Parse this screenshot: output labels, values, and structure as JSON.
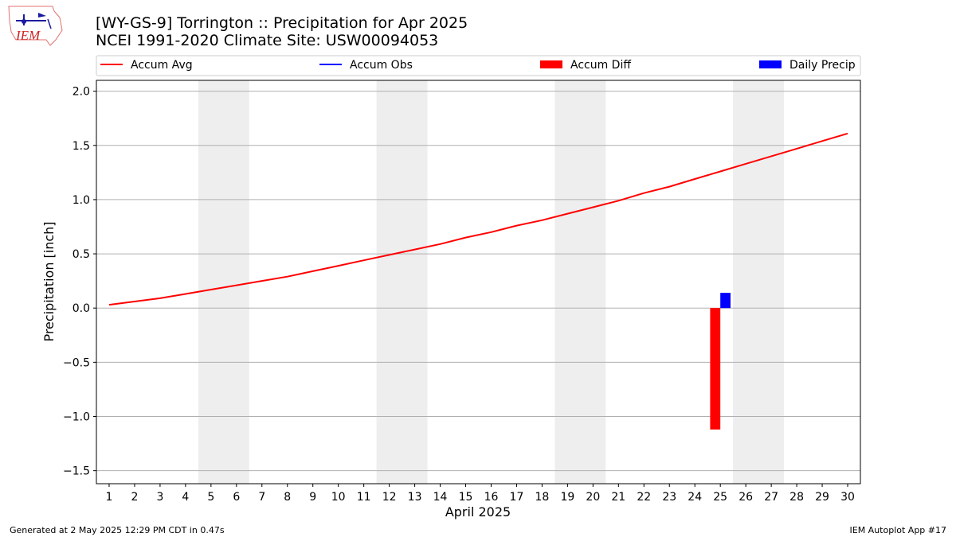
{
  "header": {
    "title_line1": "[WY-GS-9] Torrington :: Precipitation for Apr 2025",
    "title_line2": "NCEI 1991-2020 Climate Site: USW00094053",
    "logo_text": "IEM"
  },
  "footer": {
    "generated": "Generated at 2 May 2025 12:29 PM CDT in 0.47s",
    "app": "IEM Autoplot App #17"
  },
  "colors": {
    "accum_avg": "#ff0000",
    "accum_obs": "#0000ff",
    "accum_diff": "#ff0000",
    "daily_precip": "#0000ff",
    "weekend_band": "#eeeeee",
    "grid": "#b0b0b0"
  },
  "chart_data": {
    "type": "line",
    "xlabel": "April 2025",
    "ylabel": "Precipitation [inch]",
    "x": [
      1,
      2,
      3,
      4,
      5,
      6,
      7,
      8,
      9,
      10,
      11,
      12,
      13,
      14,
      15,
      16,
      17,
      18,
      19,
      20,
      21,
      22,
      23,
      24,
      25,
      26,
      27,
      28,
      29,
      30
    ],
    "xlim": [
      0.5,
      30.5
    ],
    "ylim": [
      -1.62,
      2.1
    ],
    "yticks": [
      -1.5,
      -1.0,
      -0.5,
      0.0,
      0.5,
      1.0,
      1.5,
      2.0
    ],
    "ytick_labels": [
      "−1.5",
      "−1.0",
      "−0.5",
      "0.0",
      "0.5",
      "1.0",
      "1.5",
      "2.0"
    ],
    "grid": "horizontal",
    "weekend_bands": [
      [
        4.5,
        6.5
      ],
      [
        11.5,
        13.5
      ],
      [
        18.5,
        20.5
      ],
      [
        25.5,
        27.5
      ]
    ],
    "legend": {
      "placement": "top",
      "entries": [
        {
          "label": "Accum Avg",
          "kind": "line",
          "color": "#ff0000"
        },
        {
          "label": "Accum Obs",
          "kind": "line",
          "color": "#0000ff"
        },
        {
          "label": "Accum Diff",
          "kind": "bar",
          "color": "#ff0000"
        },
        {
          "label": "Daily Precip",
          "kind": "bar",
          "color": "#0000ff"
        }
      ]
    },
    "series": [
      {
        "name": "Accum Avg",
        "type": "line",
        "color": "#ff0000",
        "x": [
          1,
          2,
          3,
          4,
          5,
          6,
          7,
          8,
          9,
          10,
          11,
          12,
          13,
          14,
          15,
          16,
          17,
          18,
          19,
          20,
          21,
          22,
          23,
          24,
          25,
          26,
          27,
          28,
          29,
          30
        ],
        "values": [
          0.03,
          0.06,
          0.09,
          0.13,
          0.17,
          0.21,
          0.25,
          0.29,
          0.34,
          0.39,
          0.44,
          0.49,
          0.54,
          0.59,
          0.65,
          0.7,
          0.76,
          0.81,
          0.87,
          0.93,
          0.99,
          1.06,
          1.12,
          1.19,
          1.26,
          1.33,
          1.4,
          1.47,
          1.54,
          1.61
        ]
      },
      {
        "name": "Accum Diff",
        "type": "bar",
        "color": "#ff0000",
        "x": [
          25
        ],
        "values": [
          -1.12
        ]
      },
      {
        "name": "Daily Precip",
        "type": "bar",
        "color": "#0000ff",
        "x": [
          25
        ],
        "values": [
          0.14
        ]
      }
    ]
  }
}
